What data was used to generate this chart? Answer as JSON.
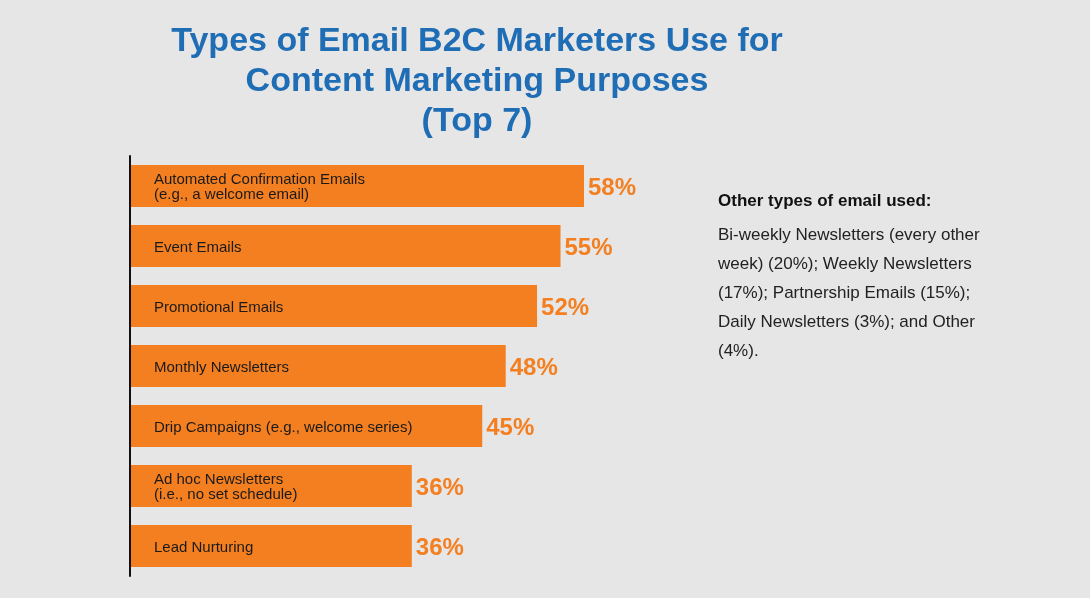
{
  "chart_data": {
    "type": "bar",
    "orientation": "horizontal",
    "title": "Types of Email B2C Marketers Use for\nContent Marketing Purposes\n(Top 7)",
    "categories": [
      "Automated Confirmation Emails\n(e.g., a welcome email)",
      "Event Emails",
      "Promotional Emails",
      "Monthly Newsletters",
      "Drip Campaigns (e.g., welcome series)",
      "Ad hoc Newsletters\n(i.e., no set schedule)",
      "Lead Nurturing"
    ],
    "values": [
      58,
      55,
      52,
      48,
      45,
      36,
      36
    ],
    "value_labels": [
      "58%",
      "55%",
      "52%",
      "48%",
      "45%",
      "36%",
      "36%"
    ],
    "color": "#f47f20",
    "annotations": [
      "Other types of email used:",
      "Bi-weekly Newsletters (every other week) (20%); Weekly Newsletters (17%); Partnership Emails (15%); Daily Newsletters (3%); and Other (4%)."
    ],
    "grid": false
  }
}
